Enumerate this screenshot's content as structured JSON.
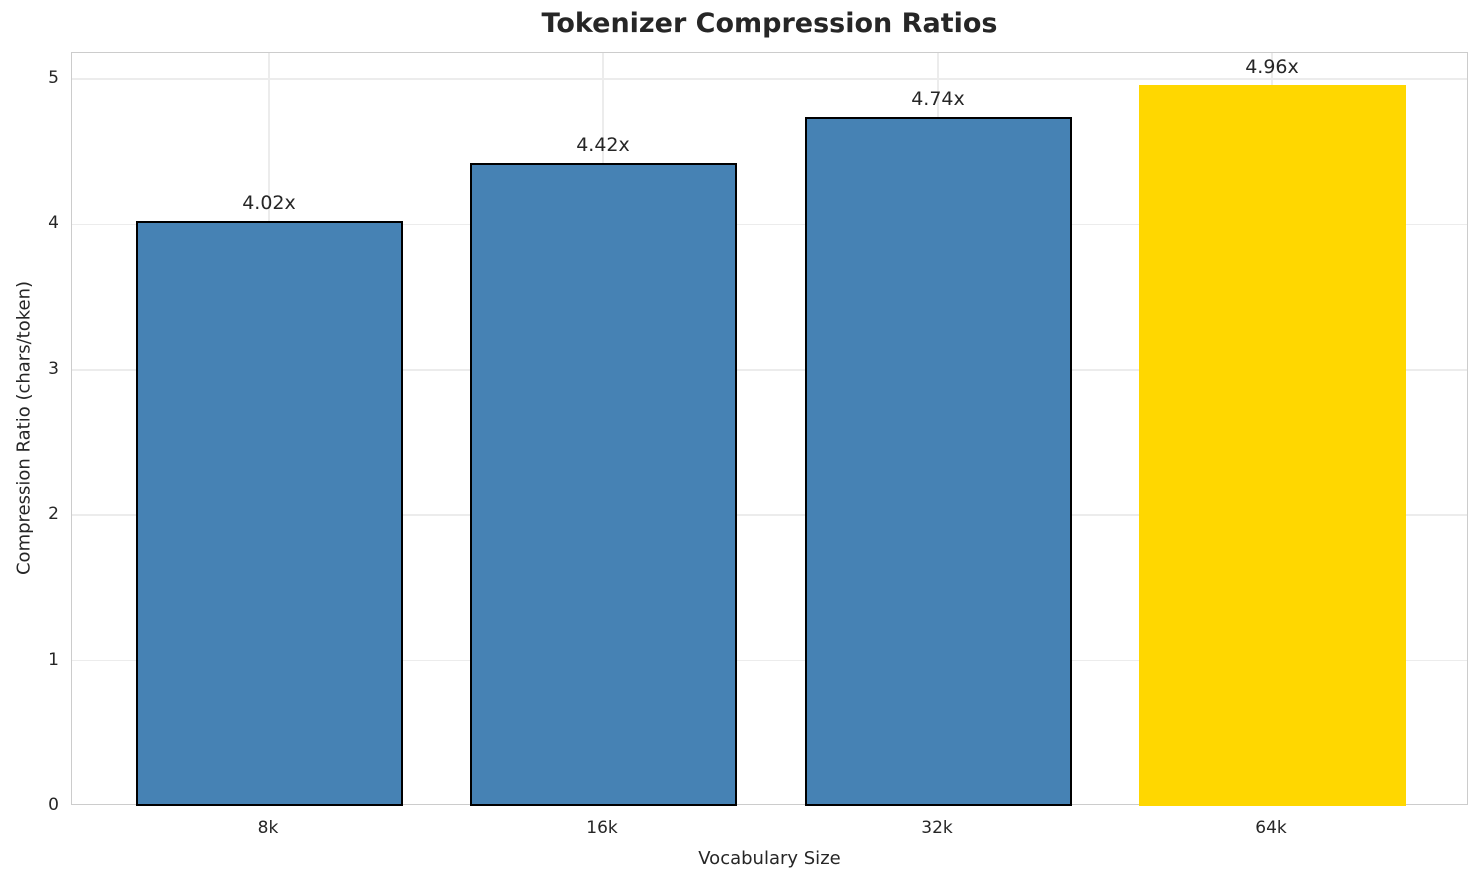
{
  "chart_data": {
    "type": "bar",
    "title": "Tokenizer Compression Ratios",
    "xlabel": "Vocabulary Size",
    "ylabel": "Compression Ratio (chars/token)",
    "categories": [
      "8k",
      "16k",
      "32k",
      "64k"
    ],
    "values": [
      4.02,
      4.42,
      4.74,
      4.96
    ],
    "bar_value_labels": [
      "4.02x",
      "4.42x",
      "4.74x",
      "4.96x"
    ],
    "ylim": [
      0,
      5
    ],
    "yticks": [
      0,
      1,
      2,
      3,
      4,
      5
    ],
    "grid": true,
    "legend": "none",
    "highlight_index": 3,
    "bar_colors": [
      "#4682B4",
      "#4682B4",
      "#4682B4",
      "#FFD700"
    ],
    "bar_edge_colors": [
      "#000000",
      "#000000",
      "#000000",
      "#FFD700"
    ],
    "colors": {
      "text": "#262626",
      "grid": "#ececec",
      "spine": "#cccccc",
      "background": "#ffffff",
      "bar_default": "#4682B4",
      "bar_highlight": "#FFD700"
    }
  }
}
